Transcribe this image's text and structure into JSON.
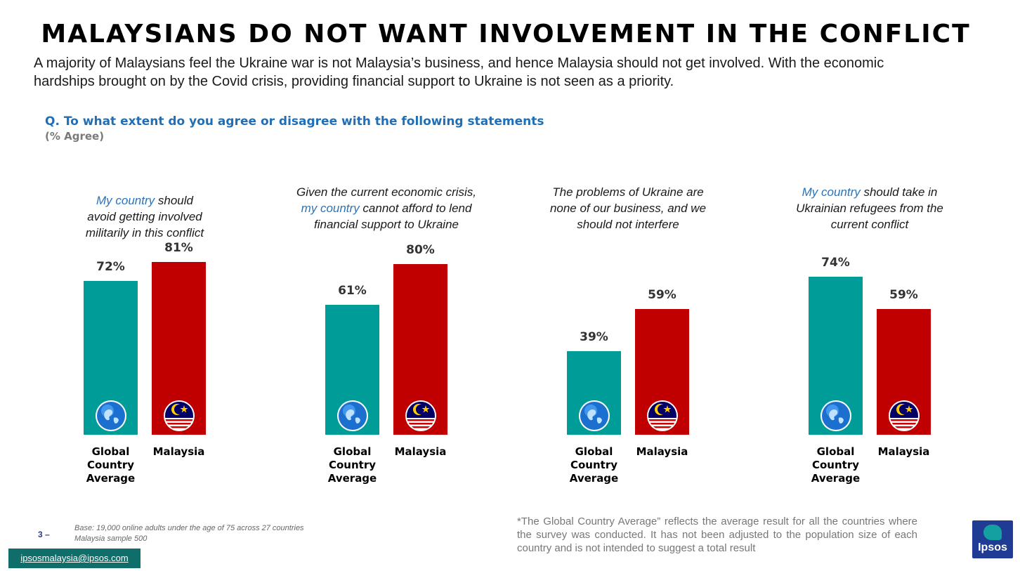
{
  "title": "MALAYSIANS DO NOT WANT INVOLVEMENT IN THE CONFLICT",
  "subtitle": "A majority of Malaysians feel the Ukraine war is not Malaysia’s business, and hence Malaysia should not get involved. With the economic hardships brought on by the Covid crisis, providing financial support to Ukraine is not seen as a priority.",
  "question": "Q. To what extent do you agree or disagree with the following statements",
  "question_sub": "(% Agree)",
  "colors": {
    "global": "#009c98",
    "malaysia": "#c00000",
    "highlight": "#2a73b9"
  },
  "chart_data": [
    {
      "type": "bar",
      "title_parts": [
        {
          "text": "My country",
          "hl": true
        },
        {
          "text": " should",
          "hl": false
        },
        {
          "br": true
        },
        {
          "text": "avoid getting involved",
          "hl": false
        },
        {
          "br": true
        },
        {
          "text": "militarily in this conflict",
          "hl": false
        }
      ],
      "categories": [
        "Global Country Average",
        "Malaysia"
      ],
      "values": [
        72,
        81
      ],
      "value_labels": [
        "72%",
        "81%"
      ],
      "ylim": [
        0,
        100
      ]
    },
    {
      "type": "bar",
      "title_parts": [
        {
          "text": "Given the current economic crisis,",
          "hl": false
        },
        {
          "br": true
        },
        {
          "text": "my country",
          "hl": true
        },
        {
          "text": " cannot afford to lend",
          "hl": false
        },
        {
          "br": true
        },
        {
          "text": "financial support to Ukraine",
          "hl": false
        }
      ],
      "categories": [
        "Global Country Average",
        "Malaysia"
      ],
      "values": [
        61,
        80
      ],
      "value_labels": [
        "61%",
        "80%"
      ],
      "ylim": [
        0,
        100
      ]
    },
    {
      "type": "bar",
      "title_parts": [
        {
          "text": "The problems of Ukraine are",
          "hl": false
        },
        {
          "br": true
        },
        {
          "text": "none of our business, and we",
          "hl": false
        },
        {
          "br": true
        },
        {
          "text": "should not interfere",
          "hl": false
        }
      ],
      "categories": [
        "Global Country Average",
        "Malaysia"
      ],
      "values": [
        39,
        59
      ],
      "value_labels": [
        "39%",
        "59%"
      ],
      "ylim": [
        0,
        100
      ]
    },
    {
      "type": "bar",
      "title_parts": [
        {
          "text": "My country",
          "hl": true
        },
        {
          "text": " should take in",
          "hl": false
        },
        {
          "br": true
        },
        {
          "text": "Ukrainian refugees from the",
          "hl": false
        },
        {
          "br": true
        },
        {
          "text": "current conflict",
          "hl": false
        }
      ],
      "categories": [
        "Global Country Average",
        "Malaysia"
      ],
      "values": [
        74,
        59
      ],
      "value_labels": [
        "74%",
        "59%"
      ],
      "ylim": [
        0,
        100
      ]
    }
  ],
  "footnote": "*The Global Country Average” reflects the average result for all the countries where the survey was conducted. It has not been adjusted to the population size of each country and is not intended to suggest a total result",
  "base": {
    "line1": "Base: 19,000 online adults under the age of 75 across 27 countries",
    "line2": "Malaysia sample 500"
  },
  "page_number": "3 –",
  "email": "ipsosmalaysia@ipsos.com",
  "logo_text": "Ipsos",
  "icons": {
    "global": "globe-icon",
    "malaysia": "malaysia-flag-icon"
  }
}
